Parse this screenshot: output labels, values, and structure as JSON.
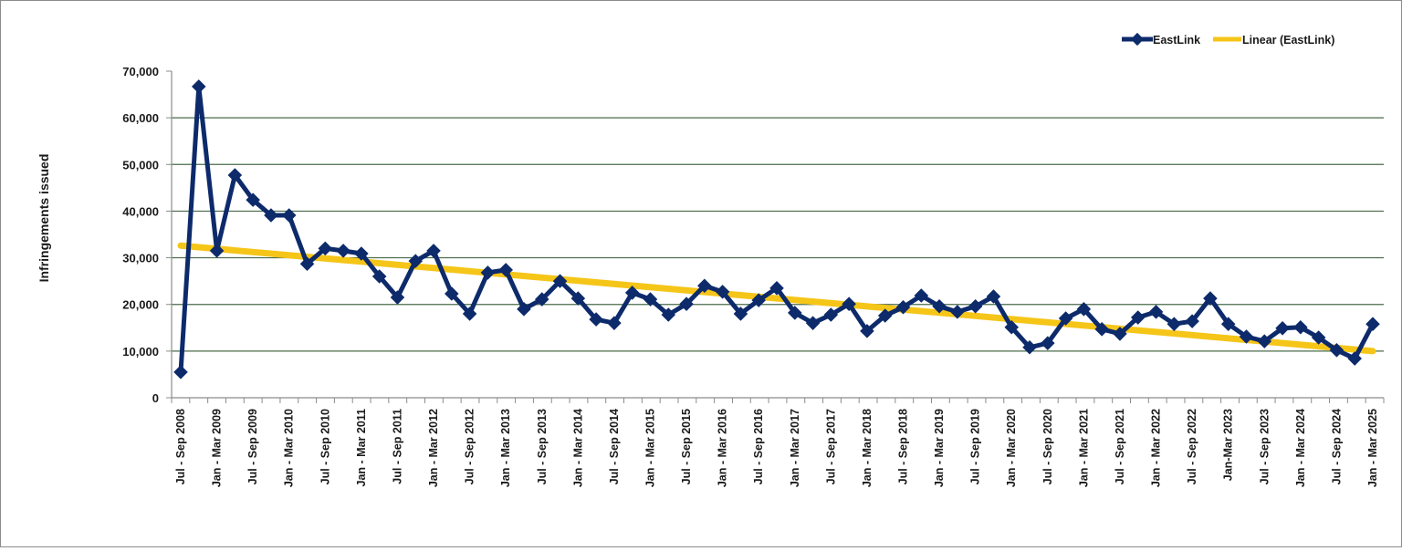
{
  "chart_data": {
    "type": "line",
    "title": "",
    "xlabel": "",
    "ylabel": "Infringements issued",
    "ylim": [
      0,
      70000
    ],
    "yticks": [
      0,
      10000,
      20000,
      30000,
      40000,
      50000,
      60000,
      70000
    ],
    "ytick_labels": [
      "0",
      "10,000",
      "20,000",
      "30,000",
      "40,000",
      "50,000",
      "60,000",
      "70,000"
    ],
    "grid": true,
    "legend_position": "top-right",
    "x_tick_labels": [
      "Jul - Sep 2008",
      "Jan - Mar 2009",
      "Jul - Sep 2009",
      "Jan - Mar 2010",
      "Jul - Sep 2010",
      "Jan - Mar 2011",
      "Jul - Sep 2011",
      "Jan - Mar 2012",
      "Jul - Sep 2012",
      "Jan - Mar 2013",
      "Jul - Sep 2013",
      "Jan - Mar 2014",
      "Jul - Sep 2014",
      "Jan - Mar 2015",
      "Jul - Sep 2015",
      "Jan - Mar 2016",
      "Jul - Sep 2016",
      "Jan - Mar 2017",
      "Jul - Sep 2017",
      "Jan - Mar 2018",
      "Jul - Sep 2018",
      "Jan - Mar 2019",
      "Jul - Sep 2019",
      "Jan - Mar 2020",
      "Jul - Sep 2020",
      "Jan - Mar 2021",
      "Jul - Sep 2021",
      "Jan - Mar 2022",
      "Jul - Sep 2022",
      "Jan-Mar 2023",
      "Jul - Sep 2023",
      "Jan - Mar 2024",
      "Jul - Sep 2024",
      "Jan - Mar 2025"
    ],
    "x_count": 67,
    "series": [
      {
        "name": "EastLink",
        "color": "#0d2a6b",
        "marker": "diamond",
        "values": [
          5500,
          66700,
          31500,
          47700,
          42400,
          39100,
          39100,
          28700,
          32000,
          31500,
          30900,
          26000,
          21500,
          29300,
          31500,
          22300,
          18000,
          26800,
          27400,
          19000,
          21100,
          25000,
          21300,
          16800,
          16000,
          22500,
          21100,
          17800,
          20100,
          24000,
          22700,
          18000,
          20900,
          23500,
          18200,
          16000,
          17800,
          20100,
          14300,
          17600,
          19400,
          21900,
          19600,
          18400,
          19600,
          21700,
          15100,
          10800,
          11700,
          17000,
          19000,
          14700,
          13700,
          17200,
          18400,
          15800,
          16400,
          21300,
          15800,
          13100,
          12100,
          14900,
          15100,
          12900,
          10200,
          8400,
          15800
        ]
      },
      {
        "name": "Linear (EastLink)",
        "color": "#f5c518",
        "type": "trendline",
        "start": 32600,
        "end": 10000
      }
    ]
  },
  "legend": {
    "items": [
      {
        "label": "EastLink",
        "color": "#0d2a6b"
      },
      {
        "label": "Linear (EastLink)",
        "color": "#f5c518"
      }
    ]
  },
  "axis": {
    "ylabel": "Infringements issued"
  },
  "colors": {
    "gridline": "#4a6b4a",
    "axis": "#8c8c8c",
    "frame": "#8c8c8c",
    "series": "#0d2a6b",
    "trend": "#f5c518"
  }
}
